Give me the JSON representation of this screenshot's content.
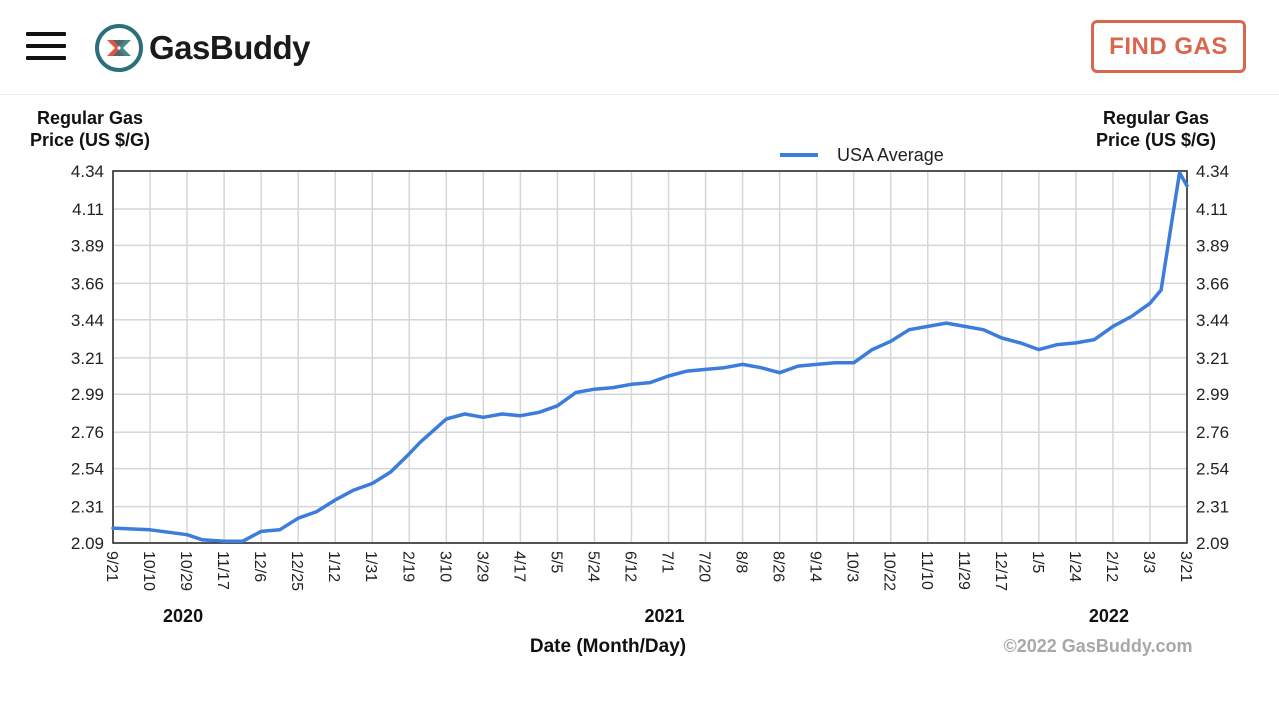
{
  "header": {
    "brand": "GasBuddy",
    "find_gas_label": "FIND GAS",
    "icons": {
      "menu": "hamburger-menu-icon",
      "logo": "gasbuddy-logo-icon"
    },
    "colors": {
      "accent": "#d9674e",
      "logo_teal": "#2a6f79",
      "logo_red": "#e0553c"
    }
  },
  "chart_data": {
    "type": "line",
    "title": "",
    "ylabel_left": [
      "Regular Gas",
      "Price (US $/G)"
    ],
    "ylabel_right": [
      "Regular Gas",
      "Price (US $/G)"
    ],
    "xlabel": "Date (Month/Day)",
    "ylim": [
      2.09,
      4.34
    ],
    "yticks": [
      "2.09",
      "2.31",
      "2.54",
      "2.76",
      "2.99",
      "3.21",
      "3.44",
      "3.66",
      "3.89",
      "4.11",
      "4.34"
    ],
    "xticks": [
      "9/21",
      "10/10",
      "10/29",
      "11/17",
      "12/6",
      "12/25",
      "1/12",
      "1/31",
      "2/19",
      "3/10",
      "3/29",
      "4/17",
      "5/5",
      "5/24",
      "6/12",
      "7/1",
      "7/20",
      "8/8",
      "8/26",
      "9/14",
      "10/3",
      "10/22",
      "11/10",
      "11/29",
      "12/17",
      "1/5",
      "1/24",
      "2/12",
      "3/3",
      "3/21"
    ],
    "years": [
      {
        "label": "2020",
        "at_tick": 2
      },
      {
        "label": "2021",
        "at_tick": 15
      },
      {
        "label": "2022",
        "at_tick": 27
      }
    ],
    "grid": true,
    "legend": "top-center",
    "line_color": "#3c7ddb",
    "copyright": "©2022 GasBuddy.com",
    "series": [
      {
        "name": "USA Average",
        "x_tick_index": [
          0,
          1,
          2,
          2.4,
          3,
          3.5,
          4,
          4.5,
          5,
          5.5,
          6,
          6.5,
          7,
          7.5,
          8,
          8.3,
          8.7,
          9,
          9.5,
          10,
          10.5,
          11,
          11.5,
          12,
          12.5,
          13,
          13.5,
          14,
          14.5,
          15,
          15.5,
          16,
          16.5,
          17,
          17.5,
          18,
          18.5,
          19,
          19.5,
          20,
          20.5,
          21,
          21.5,
          22,
          22.5,
          23,
          23.5,
          24,
          24.5,
          25,
          25.5,
          26,
          26.5,
          27,
          27.5,
          28,
          28.3,
          28.6,
          28.8,
          29
        ],
        "values": [
          2.18,
          2.17,
          2.14,
          2.11,
          2.1,
          2.1,
          2.16,
          2.17,
          2.24,
          2.28,
          2.35,
          2.41,
          2.45,
          2.52,
          2.63,
          2.7,
          2.78,
          2.84,
          2.87,
          2.85,
          2.87,
          2.86,
          2.88,
          2.92,
          3.0,
          3.02,
          3.03,
          3.05,
          3.06,
          3.1,
          3.13,
          3.14,
          3.15,
          3.17,
          3.15,
          3.12,
          3.16,
          3.17,
          3.18,
          3.18,
          3.26,
          3.31,
          3.38,
          3.4,
          3.42,
          3.4,
          3.38,
          3.33,
          3.3,
          3.26,
          3.29,
          3.3,
          3.32,
          3.4,
          3.46,
          3.54,
          3.62,
          4.05,
          4.33,
          4.25
        ]
      }
    ]
  }
}
